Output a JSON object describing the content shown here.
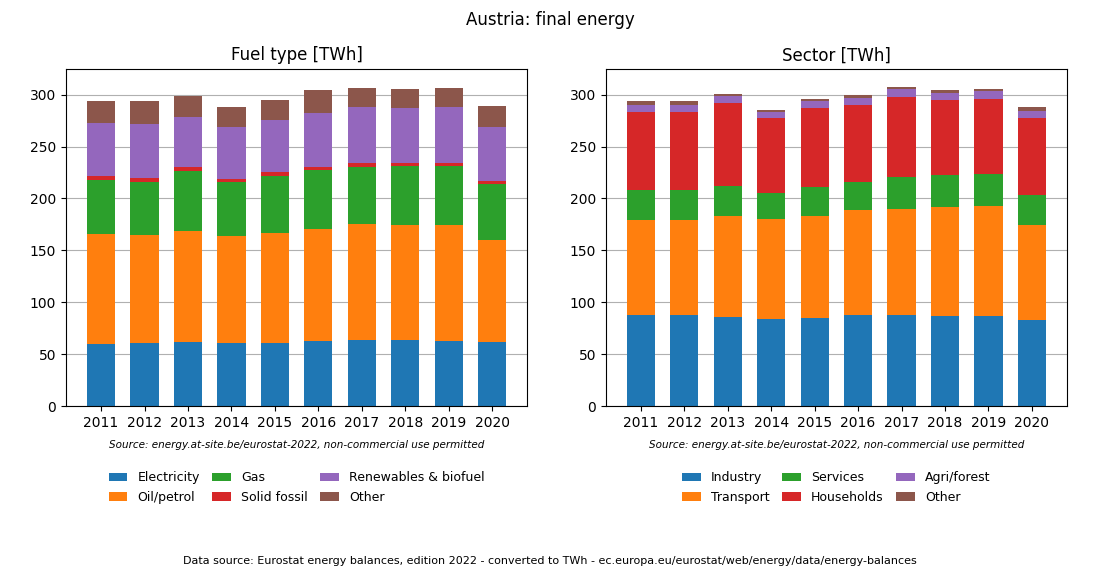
{
  "title": "Austria: final energy",
  "annotations": [
    "Data source: Eurostat energy balances, edition 2022 - converted to TWh - ec.europa.eu/eurostat/web/energy/data/energy-balances"
  ],
  "chart_data": [
    {
      "type": "bar",
      "stacked": true,
      "title": "Fuel type [TWh]",
      "categories": [
        "2011",
        "2012",
        "2013",
        "2014",
        "2015",
        "2016",
        "2017",
        "2018",
        "2019",
        "2020"
      ],
      "series": [
        {
          "name": "Electricity",
          "color": "#1f77b4",
          "values": [
            60,
            61,
            62,
            61,
            61,
            63,
            64,
            64,
            63,
            62
          ]
        },
        {
          "name": "Oil/petrol",
          "color": "#ff7f0e",
          "values": [
            106,
            104,
            107,
            103,
            106,
            108,
            111,
            110,
            111,
            98
          ]
        },
        {
          "name": "Gas",
          "color": "#2ca02c",
          "values": [
            52,
            51,
            57,
            52,
            55,
            56,
            55,
            57,
            57,
            54
          ]
        },
        {
          "name": "Solid fossil",
          "color": "#d62728",
          "values": [
            4,
            4,
            4,
            3,
            3,
            3,
            4,
            3,
            3,
            3
          ]
        },
        {
          "name": "Renewables & biofuel",
          "color": "#9467bd",
          "values": [
            51,
            52,
            48,
            50,
            51,
            52,
            54,
            53,
            54,
            52
          ]
        },
        {
          "name": "Other",
          "color": "#8c564b",
          "values": [
            21,
            22,
            21,
            19,
            19,
            22,
            18,
            18,
            18,
            20
          ]
        }
      ],
      "ylim": [
        0,
        325
      ],
      "yticks": [
        0,
        50,
        100,
        150,
        200,
        250,
        300
      ],
      "grid": true,
      "legend": "upper center",
      "annotations": [
        "Source: energy.at-site.be/eurostat-2022, non-commercial use permitted"
      ]
    },
    {
      "type": "bar",
      "stacked": true,
      "title": "Sector [TWh]",
      "categories": [
        "2011",
        "2012",
        "2013",
        "2014",
        "2015",
        "2016",
        "2017",
        "2018",
        "2019",
        "2020"
      ],
      "series": [
        {
          "name": "Industry",
          "color": "#1f77b4",
          "values": [
            88,
            88,
            86,
            84,
            85,
            88,
            88,
            87,
            87,
            83
          ]
        },
        {
          "name": "Transport",
          "color": "#ff7f0e",
          "values": [
            91,
            91,
            97,
            96,
            98,
            101,
            102,
            105,
            106,
            91
          ]
        },
        {
          "name": "Services",
          "color": "#2ca02c",
          "values": [
            29,
            29,
            29,
            25,
            28,
            27,
            31,
            31,
            31,
            29
          ]
        },
        {
          "name": "Households",
          "color": "#d62728",
          "values": [
            75,
            75,
            80,
            72,
            76,
            74,
            77,
            72,
            72,
            74
          ]
        },
        {
          "name": "Agri/forest",
          "color": "#9467bd",
          "values": [
            7,
            7,
            7,
            6,
            7,
            7,
            7,
            7,
            7,
            7
          ]
        },
        {
          "name": "Other",
          "color": "#8c564b",
          "values": [
            4,
            4,
            2,
            2,
            2,
            3,
            2,
            2,
            2,
            4
          ]
        }
      ],
      "ylim": [
        0,
        325
      ],
      "yticks": [
        0,
        50,
        100,
        150,
        200,
        250,
        300
      ],
      "grid": true,
      "legend": "upper center",
      "annotations": [
        "Source: energy.at-site.be/eurostat-2022, non-commercial use permitted"
      ]
    }
  ]
}
